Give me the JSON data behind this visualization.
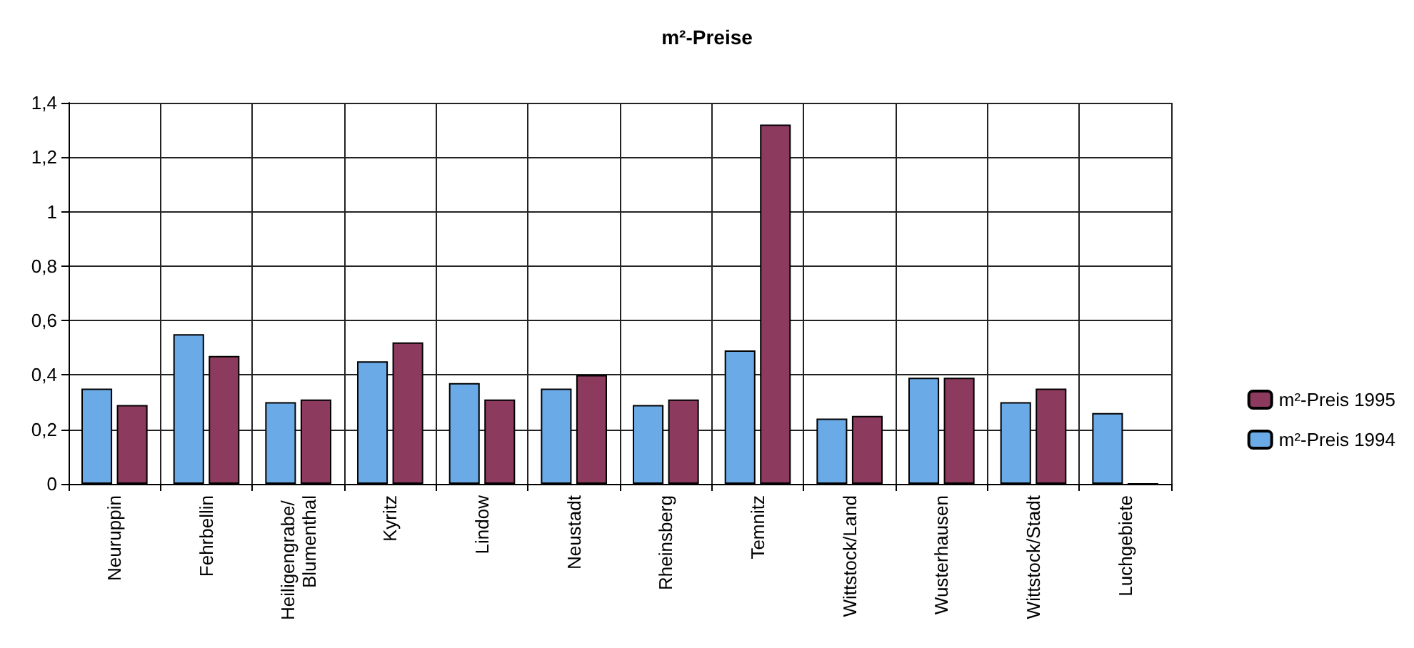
{
  "chart_data": {
    "type": "bar",
    "title": "m²-Preise",
    "categories": [
      "Neuruppin",
      "Fehrbellin",
      "Heiligengrabe/ Blumenthal",
      "Kyritz",
      "Lindow",
      "Neustadt",
      "Rheinsberg",
      "Temnitz",
      "Wittstock/Land",
      "Wusterhausen",
      "Wittstock/Stadt",
      "Luchgebiete"
    ],
    "series": [
      {
        "name": "m²-Preis 1994",
        "color": "#6aaae6",
        "values": [
          0.35,
          0.55,
          0.3,
          0.45,
          0.37,
          0.35,
          0.29,
          0.49,
          0.24,
          0.39,
          0.3,
          0.26
        ]
      },
      {
        "name": "m²-Preis 1995",
        "color": "#8c3a5e",
        "values": [
          0.29,
          0.47,
          0.31,
          0.52,
          0.31,
          0.4,
          0.31,
          1.32,
          0.25,
          0.39,
          0.35,
          0
        ]
      }
    ],
    "ylim": [
      0,
      1.4
    ],
    "yticks": [
      0,
      {
        "value": 0.2,
        "label": "0,2"
      },
      {
        "value": 0.4,
        "label": "0,4"
      },
      {
        "value": 0.6,
        "label": "0,6"
      },
      {
        "value": 0.8,
        "label": "0,8"
      },
      1,
      {
        "value": 1.2,
        "label": "1,2"
      },
      {
        "value": 1.4,
        "label": "1,4"
      }
    ],
    "grid": true,
    "legend": "right"
  }
}
